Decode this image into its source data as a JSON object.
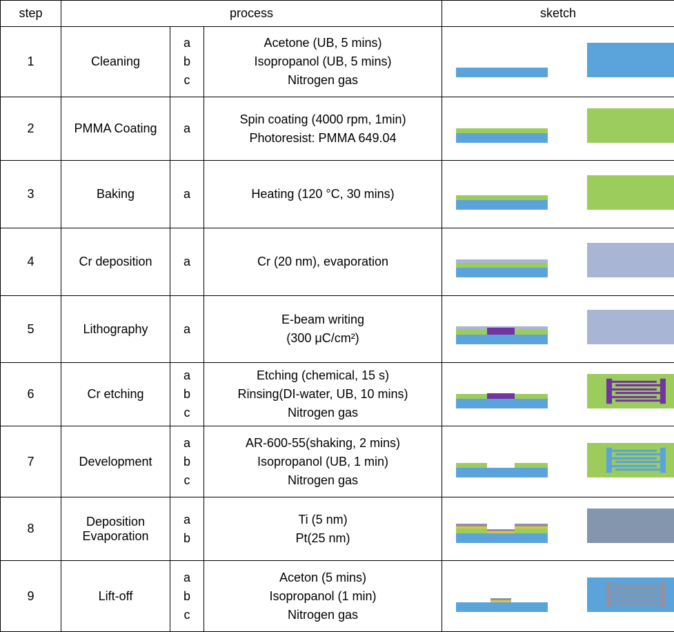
{
  "table": {
    "header": [
      "step",
      "process",
      "sketch"
    ],
    "rows": [
      {
        "step": 1,
        "name": "Cleaning",
        "items": [
          {
            "label": "a",
            "text": "Acetone (UB, 5 mins)"
          },
          {
            "label": "b",
            "text": "Isopropanol (UB, 5 mins)"
          },
          {
            "label": "c",
            "text": "Nitrogen gas"
          }
        ]
      },
      {
        "step": 2,
        "name": "PMMA Coating",
        "items": [
          {
            "label": "a",
            "text": "Spin coating (4000 rpm, 1min)\nPhotoresist: PMMA 649.04"
          }
        ]
      },
      {
        "step": 3,
        "name": "Baking",
        "items": [
          {
            "label": "a",
            "text": "Heating (120 °C, 30 mins)"
          }
        ]
      },
      {
        "step": 4,
        "name": "Cr deposition",
        "items": [
          {
            "label": "a",
            "text": "Cr (20 nm), evaporation"
          }
        ]
      },
      {
        "step": 5,
        "name": "Lithography",
        "items": [
          {
            "label": "a",
            "text": "E-beam writing\n(300 μC/cm²)"
          }
        ]
      },
      {
        "step": 6,
        "name": "Cr etching",
        "items": [
          {
            "label": "a",
            "text": "Etching (chemical, 15 s)"
          },
          {
            "label": "b",
            "text": "Rinsing(DI-water, UB, 10 mins)"
          },
          {
            "label": "c",
            "text": "Nitrogen gas"
          }
        ]
      },
      {
        "step": 7,
        "name": "Development",
        "items": [
          {
            "label": "a",
            "text": "AR-600-55(shaking, 2 mins)"
          },
          {
            "label": "b",
            "text": "Isopropanol (UB, 1 min)"
          },
          {
            "label": "c",
            "text": "Nitrogen gas"
          }
        ]
      },
      {
        "step": 8,
        "name": "Deposition Evaporation",
        "items": [
          {
            "label": "a",
            "text": "Ti (5 nm)"
          },
          {
            "label": "b",
            "text": "Pt(25 nm)"
          }
        ]
      },
      {
        "step": 9,
        "name": "Lift-off",
        "items": [
          {
            "label": "a",
            "text": "Aceton (5 mins)"
          },
          {
            "label": "b",
            "text": "Isopropanol (1 min)"
          },
          {
            "label": "c",
            "text": "Nitrogen gas"
          }
        ]
      }
    ]
  }
}
